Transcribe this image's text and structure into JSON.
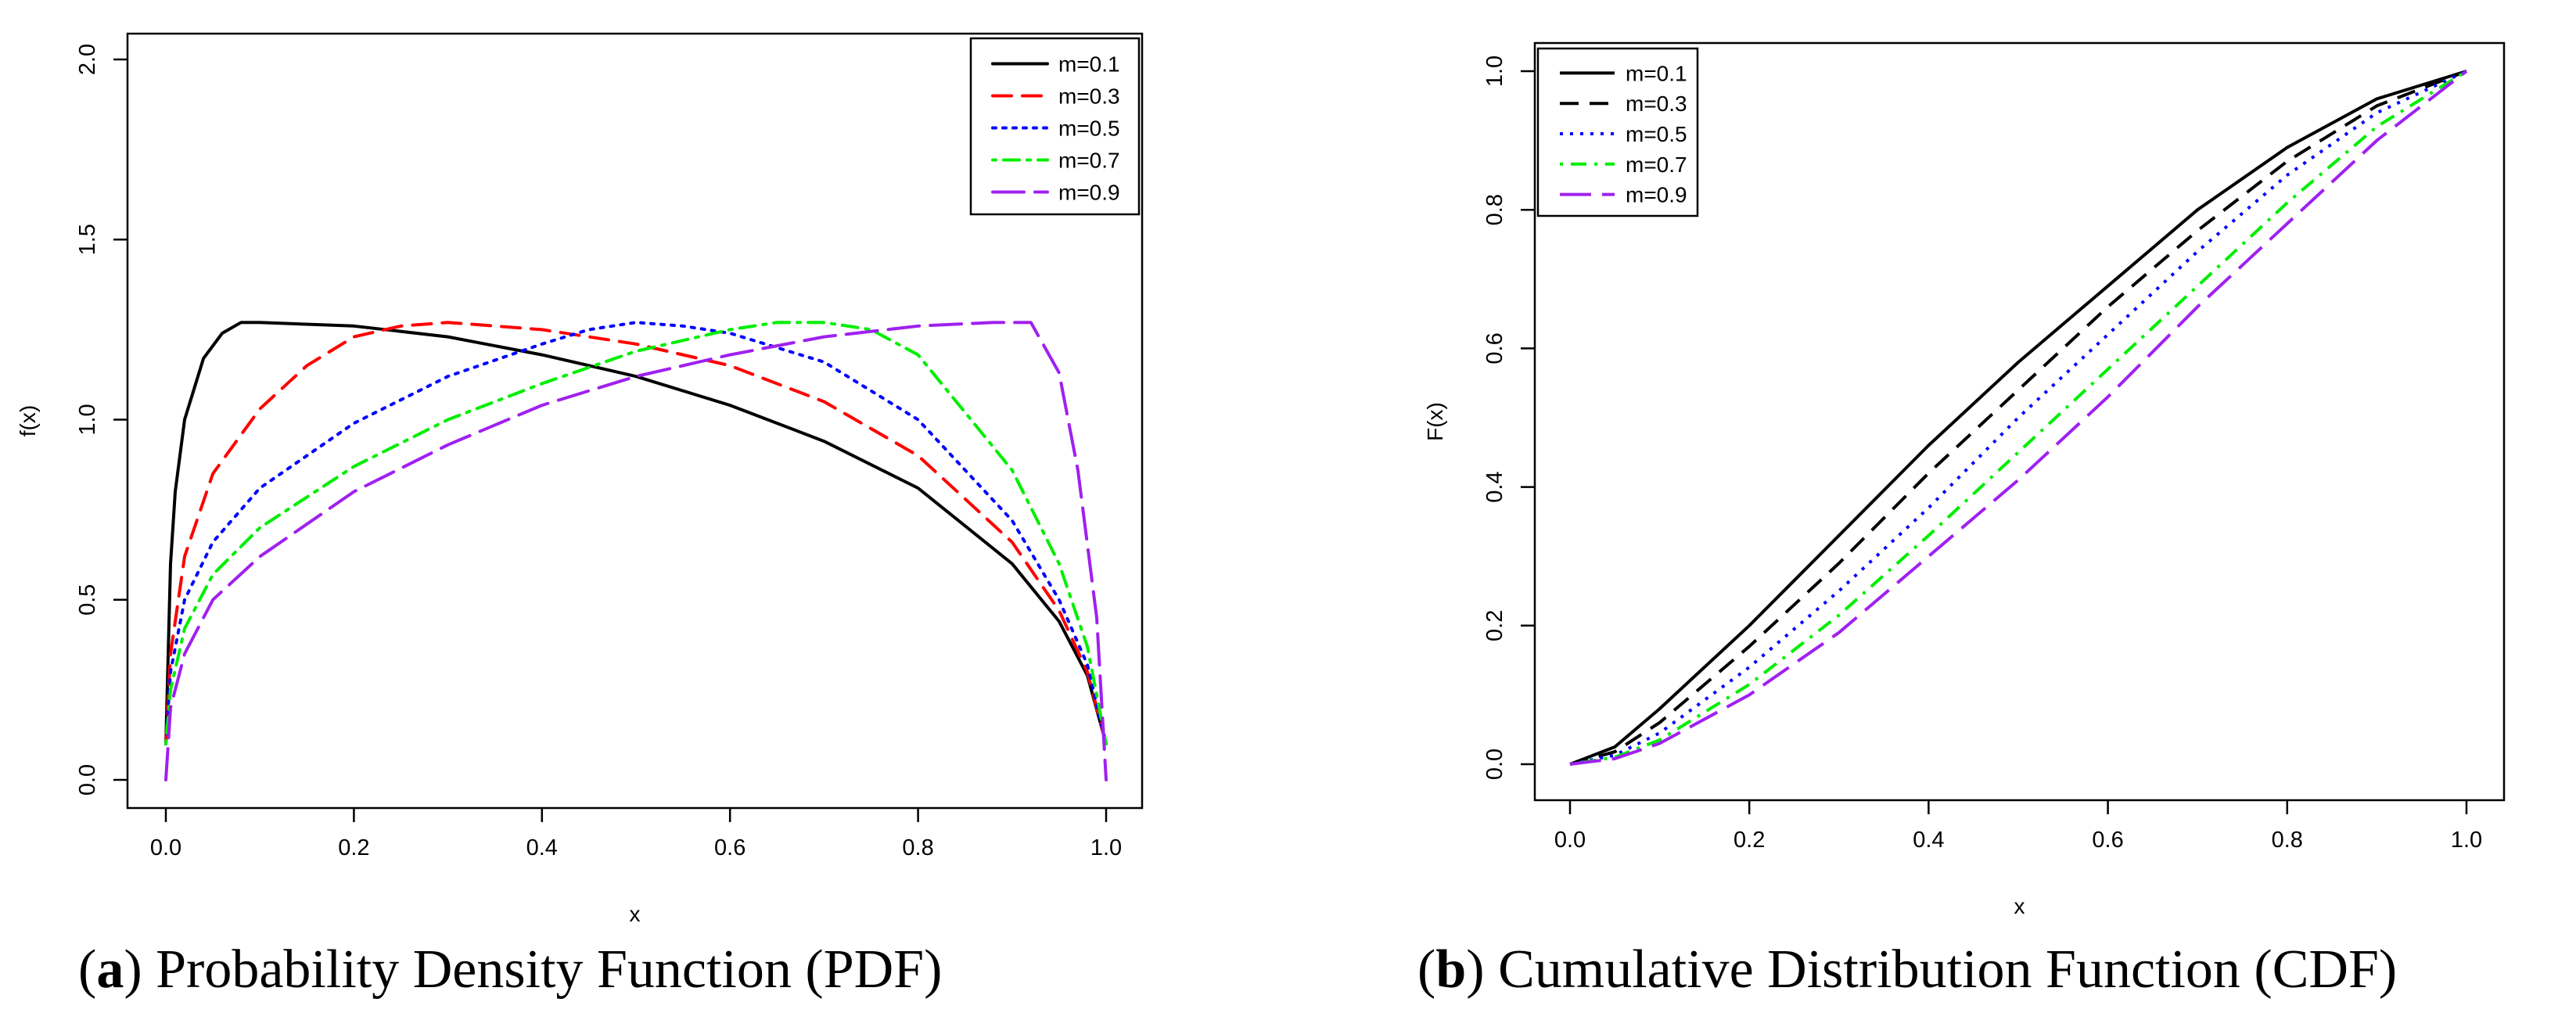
{
  "captions": {
    "a": {
      "letter": "a",
      "text": " Probability Density Function (PDF)"
    },
    "b": {
      "letter": "b",
      "text": " Cumulative Distribution Function (CDF)"
    }
  },
  "chart_data": [
    {
      "id": "pdf",
      "type": "line",
      "title": "",
      "xlabel": "x",
      "ylabel": "f(x)",
      "xlim": [
        0.0,
        1.0
      ],
      "ylim": [
        0.0,
        2.0
      ],
      "xticks": [
        "0.0",
        "0.2",
        "0.4",
        "0.6",
        "0.8",
        "1.0"
      ],
      "yticks": [
        "0.0",
        "0.5",
        "1.0",
        "1.5",
        "2.0"
      ],
      "legend_position": "top-right",
      "grid": false,
      "series": [
        {
          "name": "m=0.1",
          "color": "#000000",
          "dash": "solid",
          "x": [
            0.0,
            0.005,
            0.01,
            0.02,
            0.04,
            0.06,
            0.08,
            0.1,
            0.2,
            0.3,
            0.4,
            0.5,
            0.6,
            0.7,
            0.8,
            0.9,
            0.95,
            0.98,
            1.0
          ],
          "y": [
            0.1,
            0.6,
            0.8,
            1.0,
            1.17,
            1.24,
            1.27,
            1.27,
            1.26,
            1.23,
            1.18,
            1.12,
            1.04,
            0.94,
            0.81,
            0.6,
            0.44,
            0.29,
            0.1
          ]
        },
        {
          "name": "m=0.3",
          "color": "#ff0000",
          "dash": "dashed",
          "x": [
            0.0,
            0.005,
            0.02,
            0.05,
            0.1,
            0.15,
            0.2,
            0.25,
            0.3,
            0.4,
            0.5,
            0.6,
            0.7,
            0.8,
            0.9,
            0.95,
            0.98,
            1.0
          ],
          "y": [
            0.1,
            0.35,
            0.62,
            0.85,
            1.03,
            1.15,
            1.23,
            1.26,
            1.27,
            1.25,
            1.21,
            1.15,
            1.05,
            0.9,
            0.66,
            0.47,
            0.3,
            0.1
          ]
        },
        {
          "name": "m=0.5",
          "color": "#0000ff",
          "dash": "dotted",
          "x": [
            0.0,
            0.005,
            0.02,
            0.05,
            0.1,
            0.2,
            0.3,
            0.4,
            0.45,
            0.5,
            0.55,
            0.6,
            0.7,
            0.8,
            0.9,
            0.95,
            0.98,
            1.0
          ],
          "y": [
            0.1,
            0.3,
            0.5,
            0.66,
            0.81,
            0.99,
            1.12,
            1.21,
            1.25,
            1.27,
            1.26,
            1.24,
            1.16,
            1.0,
            0.72,
            0.5,
            0.32,
            0.1
          ]
        },
        {
          "name": "m=0.7",
          "color": "#00ee00",
          "dash": "dashdot",
          "x": [
            0.0,
            0.005,
            0.02,
            0.05,
            0.1,
            0.2,
            0.3,
            0.4,
            0.5,
            0.6,
            0.65,
            0.7,
            0.75,
            0.8,
            0.9,
            0.95,
            0.98,
            1.0
          ],
          "y": [
            0.1,
            0.25,
            0.42,
            0.57,
            0.7,
            0.87,
            1.0,
            1.1,
            1.19,
            1.25,
            1.27,
            1.27,
            1.25,
            1.18,
            0.86,
            0.6,
            0.37,
            0.1
          ]
        },
        {
          "name": "m=0.9",
          "color": "#a020f0",
          "dash": "longdash",
          "x": [
            0.0,
            0.005,
            0.02,
            0.05,
            0.1,
            0.2,
            0.3,
            0.4,
            0.5,
            0.6,
            0.7,
            0.8,
            0.88,
            0.9,
            0.92,
            0.95,
            0.97,
            0.99,
            1.0
          ],
          "y": [
            0.0,
            0.2,
            0.35,
            0.5,
            0.62,
            0.8,
            0.93,
            1.04,
            1.12,
            1.18,
            1.23,
            1.26,
            1.27,
            1.27,
            1.27,
            1.13,
            0.86,
            0.45,
            0.0
          ]
        }
      ]
    },
    {
      "id": "cdf",
      "type": "line",
      "title": "",
      "xlabel": "x",
      "ylabel": "F(x)",
      "xlim": [
        0.0,
        1.0
      ],
      "ylim": [
        0.0,
        1.0
      ],
      "xticks": [
        "0.0",
        "0.2",
        "0.4",
        "0.6",
        "0.8",
        "1.0"
      ],
      "yticks": [
        "0.0",
        "0.2",
        "0.4",
        "0.6",
        "0.8",
        "1.0"
      ],
      "legend_position": "top-left",
      "grid": false,
      "series": [
        {
          "name": "m=0.1",
          "color": "#000000",
          "dash": "solid",
          "x": [
            0.0,
            0.05,
            0.1,
            0.2,
            0.3,
            0.4,
            0.5,
            0.6,
            0.7,
            0.8,
            0.9,
            1.0
          ],
          "y": [
            0.0,
            0.025,
            0.08,
            0.2,
            0.33,
            0.46,
            0.58,
            0.69,
            0.8,
            0.89,
            0.96,
            1.0
          ]
        },
        {
          "name": "m=0.3",
          "color": "#000000",
          "dash": "dashed",
          "x": [
            0.0,
            0.05,
            0.1,
            0.2,
            0.3,
            0.4,
            0.5,
            0.6,
            0.7,
            0.8,
            0.9,
            1.0
          ],
          "y": [
            0.0,
            0.018,
            0.06,
            0.17,
            0.29,
            0.42,
            0.54,
            0.66,
            0.77,
            0.87,
            0.95,
            1.0
          ]
        },
        {
          "name": "m=0.5",
          "color": "#0000ff",
          "dash": "dotted",
          "x": [
            0.0,
            0.05,
            0.1,
            0.2,
            0.3,
            0.4,
            0.5,
            0.6,
            0.7,
            0.8,
            0.9,
            1.0
          ],
          "y": [
            0.0,
            0.013,
            0.045,
            0.14,
            0.25,
            0.37,
            0.5,
            0.62,
            0.74,
            0.85,
            0.94,
            1.0
          ]
        },
        {
          "name": "m=0.7",
          "color": "#00ee00",
          "dash": "dashdot",
          "x": [
            0.0,
            0.05,
            0.1,
            0.2,
            0.3,
            0.4,
            0.5,
            0.6,
            0.7,
            0.8,
            0.9,
            1.0
          ],
          "y": [
            0.0,
            0.01,
            0.035,
            0.115,
            0.215,
            0.33,
            0.45,
            0.57,
            0.69,
            0.81,
            0.92,
            1.0
          ]
        },
        {
          "name": "m=0.9",
          "color": "#a020f0",
          "dash": "longdash",
          "x": [
            0.0,
            0.05,
            0.1,
            0.2,
            0.3,
            0.4,
            0.5,
            0.6,
            0.7,
            0.8,
            0.9,
            1.0
          ],
          "y": [
            0.0,
            0.008,
            0.03,
            0.1,
            0.19,
            0.3,
            0.41,
            0.53,
            0.66,
            0.78,
            0.9,
            1.0
          ]
        }
      ]
    }
  ]
}
